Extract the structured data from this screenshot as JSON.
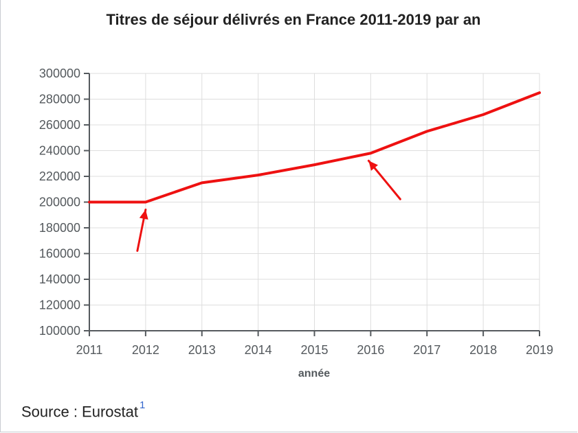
{
  "chart_data": {
    "type": "line",
    "title": "Titres de séjour délivrés en France 2011-2019 par an",
    "xlabel": "année",
    "ylabel": "",
    "x": [
      2011,
      2012,
      2013,
      2014,
      2015,
      2016,
      2017,
      2018,
      2019
    ],
    "series": [
      {
        "values": [
          200000,
          200000,
          215000,
          221000,
          229000,
          238000,
          255000,
          268000,
          285000
        ]
      }
    ],
    "ylim": [
      100000,
      300000
    ],
    "yticks": [
      100000,
      120000,
      140000,
      160000,
      180000,
      200000,
      220000,
      240000,
      260000,
      280000,
      300000
    ],
    "grid": true,
    "line_color": "#ee1111",
    "annotations": [
      {
        "type": "arrow",
        "points_to": {
          "x": 2012,
          "y": 200000
        }
      },
      {
        "type": "arrow",
        "points_to": {
          "x": 2016,
          "y": 238000
        }
      }
    ]
  },
  "source": {
    "label": "Source : Eurostat",
    "ref": "1"
  },
  "colors": {
    "grid": "#dddddd",
    "axis": "#54595d",
    "arrow": "#ee1111"
  }
}
